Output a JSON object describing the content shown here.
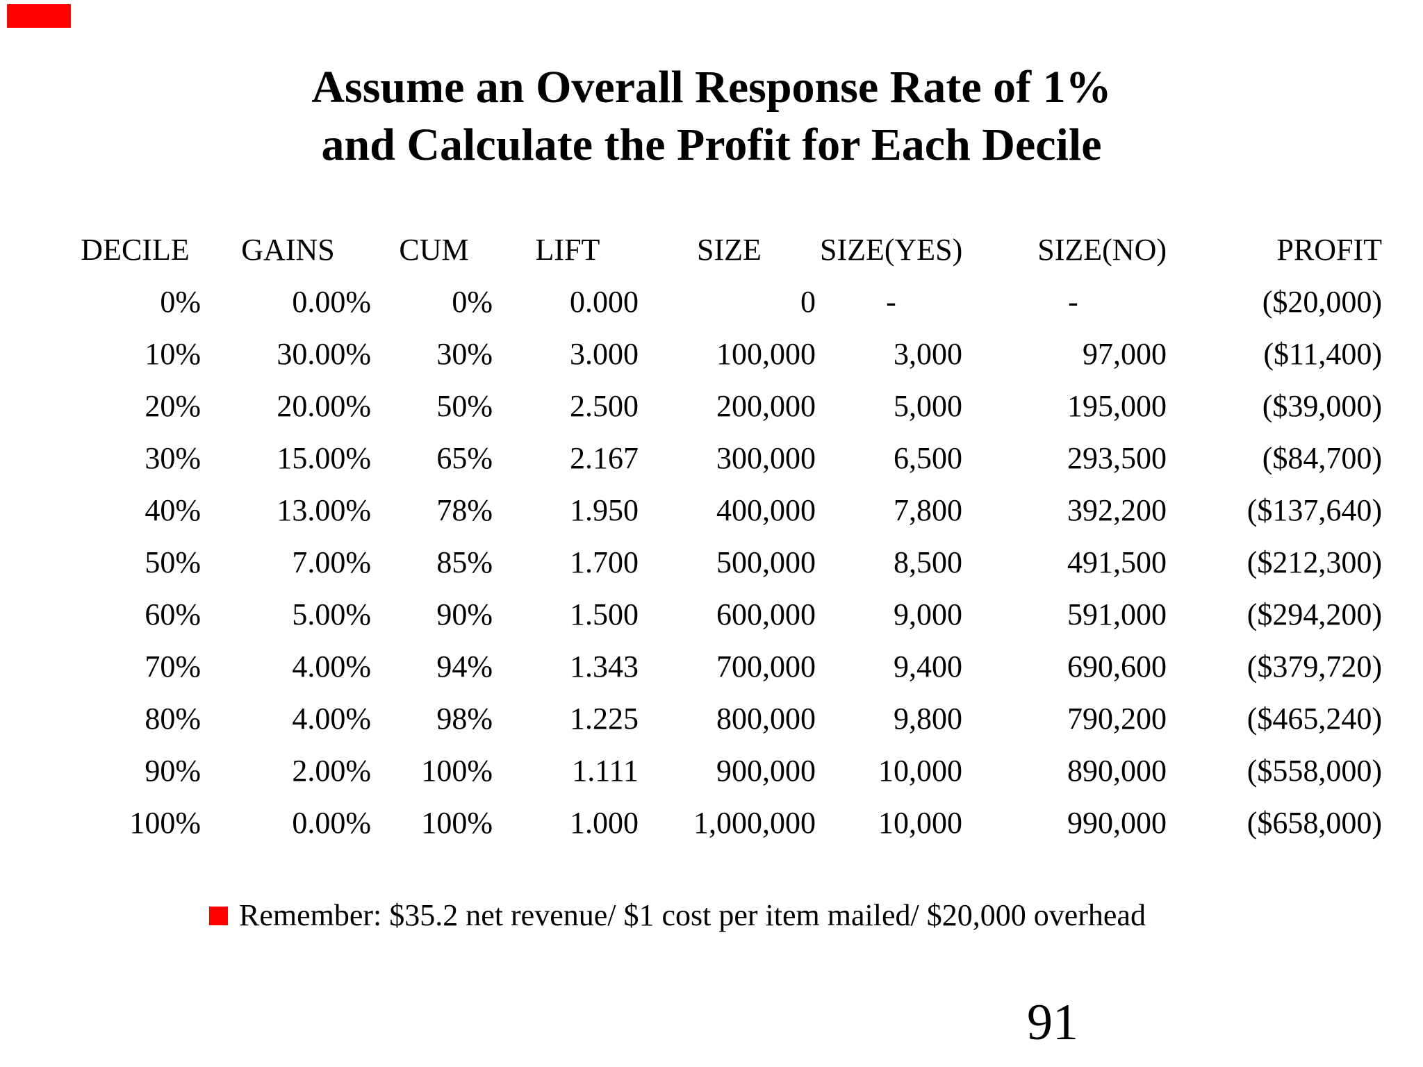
{
  "slide": {
    "accent_color": "#ff0000",
    "title_line1": "Assume an Overall Response Rate of 1%",
    "title_line2": "and Calculate the Profit for Each Decile",
    "note_text": "Remember: $35.2 net revenue/ $1 cost per item mailed/ $20,000 overhead",
    "page_number": "91"
  },
  "table": {
    "headers": [
      "DECILE",
      "GAINS",
      "CUM",
      "LIFT",
      "SIZE",
      "SIZE(YES)",
      "SIZE(NO)",
      "PROFIT"
    ],
    "rows": [
      [
        "0%",
        "0.00%",
        "0%",
        "0.000",
        "0",
        "-",
        "-",
        "($20,000)"
      ],
      [
        "10%",
        "30.00%",
        "30%",
        "3.000",
        "100,000",
        "3,000",
        "97,000",
        "($11,400)"
      ],
      [
        "20%",
        "20.00%",
        "50%",
        "2.500",
        "200,000",
        "5,000",
        "195,000",
        "($39,000)"
      ],
      [
        "30%",
        "15.00%",
        "65%",
        "2.167",
        "300,000",
        "6,500",
        "293,500",
        "($84,700)"
      ],
      [
        "40%",
        "13.00%",
        "78%",
        "1.950",
        "400,000",
        "7,800",
        "392,200",
        "($137,640)"
      ],
      [
        "50%",
        "7.00%",
        "85%",
        "1.700",
        "500,000",
        "8,500",
        "491,500",
        "($212,300)"
      ],
      [
        "60%",
        "5.00%",
        "90%",
        "1.500",
        "600,000",
        "9,000",
        "591,000",
        "($294,200)"
      ],
      [
        "70%",
        "4.00%",
        "94%",
        "1.343",
        "700,000",
        "9,400",
        "690,600",
        "($379,720)"
      ],
      [
        "80%",
        "4.00%",
        "98%",
        "1.225",
        "800,000",
        "9,800",
        "790,200",
        "($465,240)"
      ],
      [
        "90%",
        "2.00%",
        "100%",
        "1.111",
        "900,000",
        "10,000",
        "890,000",
        "($558,000)"
      ],
      [
        "100%",
        "0.00%",
        "100%",
        "1.000",
        "1,000,000",
        "10,000",
        "990,000",
        "($658,000)"
      ]
    ]
  }
}
